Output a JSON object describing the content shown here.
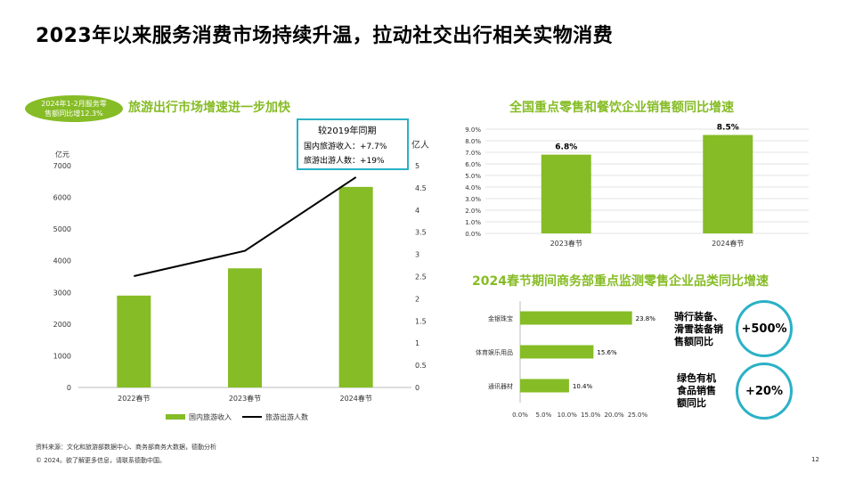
{
  "title": "2023年以来服务消费市场持续升温，拉动社交出行相关实物消费",
  "badge": {
    "line1": "2024年1-2月服务零",
    "line2": "售额同比增12.3%"
  },
  "colors": {
    "green": "#86bc25",
    "teal": "#2ab1c6"
  },
  "infobox": {
    "header": "较2019年同期",
    "row1": "国内旅游收入：+7.7%",
    "row2": "旅游出游人数：+19%"
  },
  "highlights": [
    {
      "label_lines": [
        "骑行装备、",
        "滑雪装备销",
        "售额同比"
      ],
      "value": "+500%"
    },
    {
      "label_lines": [
        "绿色有机",
        "食品销售",
        "额同比"
      ],
      "value": "+20%"
    }
  ],
  "footer": {
    "source": "资料来源：文化和旅游部数据中心、商务部商务大数据，德勤分析",
    "copyright": "© 2024。欲了解更多信息，请联系德勤中国。",
    "page": "12"
  },
  "chart_data": [
    {
      "type": "bar",
      "title": "旅游出行市场增速进一步加快",
      "categories": [
        "2022春节",
        "2023春节",
        "2024春节"
      ],
      "series": [
        {
          "name": "国内旅游收入",
          "type": "bar",
          "axis": "left",
          "values": [
            2900,
            3760,
            6330
          ]
        },
        {
          "name": "旅游出游人数",
          "type": "line",
          "axis": "right",
          "values": [
            2.51,
            3.08,
            4.74
          ]
        }
      ],
      "ylabel_left": "亿元",
      "ylim_left": [
        0,
        7000
      ],
      "yticks_left": [
        "0",
        "1000",
        "2000",
        "3000",
        "4000",
        "5000",
        "6000",
        "7000"
      ],
      "ylabel_right": "亿人",
      "ylim_right": [
        0,
        5
      ],
      "yticks_right": [
        "0",
        "0.5",
        "1",
        "1.5",
        "2",
        "2.5",
        "3",
        "3.5",
        "4",
        "4.5",
        "5"
      ]
    },
    {
      "type": "bar",
      "title": "全国重点零售和餐饮企业销售额同比增速",
      "categories": [
        "2023春节",
        "2024春节"
      ],
      "values": [
        6.8,
        8.5
      ],
      "data_labels": [
        "6.8%",
        "8.5%"
      ],
      "ylim": [
        0,
        9
      ],
      "yticks": [
        "0.0%",
        "1.0%",
        "2.0%",
        "3.0%",
        "4.0%",
        "5.0%",
        "6.0%",
        "7.0%",
        "8.0%",
        "9.0%"
      ]
    },
    {
      "type": "bar",
      "orientation": "horizontal",
      "title": "2024春节期间商务部重点监测零售企业品类同比增速",
      "categories": [
        "金银珠宝",
        "体育娱乐用品",
        "通讯器材"
      ],
      "values": [
        23.8,
        15.6,
        10.4
      ],
      "data_labels": [
        "23.8%",
        "15.6%",
        "10.4%"
      ],
      "xlim": [
        0,
        25
      ],
      "xticks": [
        "0.0%",
        "5.0%",
        "10.0%",
        "15.0%",
        "20.0%",
        "25.0%"
      ]
    }
  ]
}
